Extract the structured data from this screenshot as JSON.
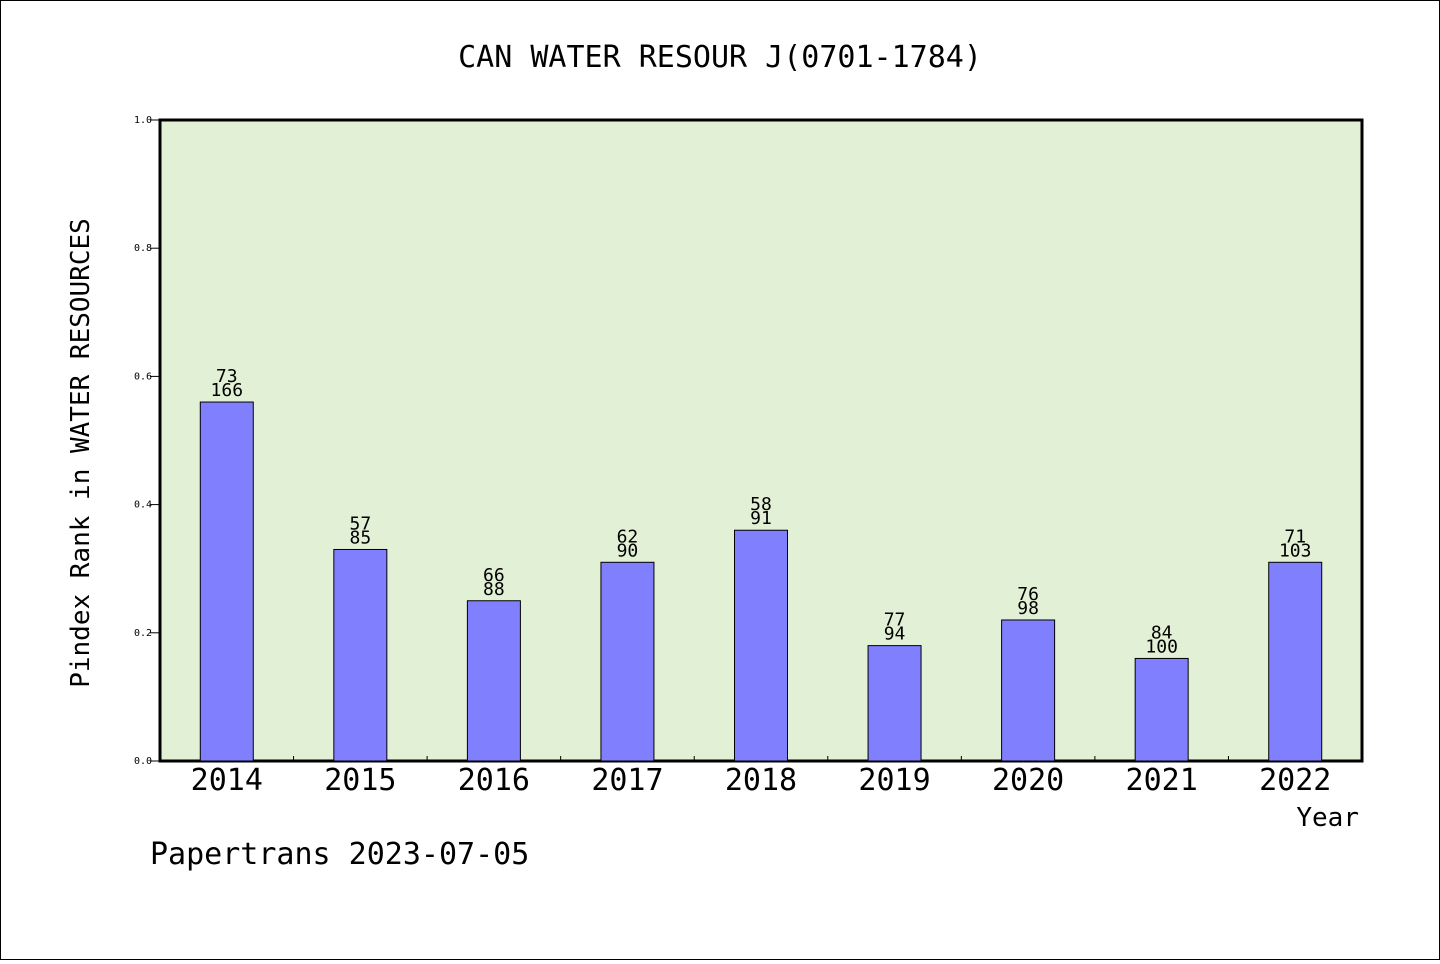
{
  "chart_data": {
    "type": "bar",
    "title": "CAN WATER RESOUR J(0701-1784)",
    "xlabel": "Year",
    "ylabel": "Pindex Rank in WATER RESOURCES",
    "footer": "Papertrans 2023-07-05",
    "ylim": [
      0,
      1.0
    ],
    "yticks": [
      "0.0",
      "0.2",
      "0.4",
      "0.6",
      "0.8",
      "1.0"
    ],
    "categories": [
      "2014",
      "2015",
      "2016",
      "2017",
      "2018",
      "2019",
      "2020",
      "2021",
      "2022"
    ],
    "values": [
      0.56,
      0.33,
      0.25,
      0.31,
      0.36,
      0.18,
      0.22,
      0.16,
      0.31
    ],
    "label_top": [
      "73",
      "57",
      "66",
      "62",
      "58",
      "77",
      "76",
      "84",
      "71"
    ],
    "label_bottom": [
      "166",
      "85",
      "88",
      "90",
      "91",
      "94",
      "98",
      "100",
      "103"
    ],
    "colors": {
      "plot_background": "#e2f0d6",
      "bar_fill": "#8080ff",
      "bar_stroke": "#000000"
    }
  }
}
